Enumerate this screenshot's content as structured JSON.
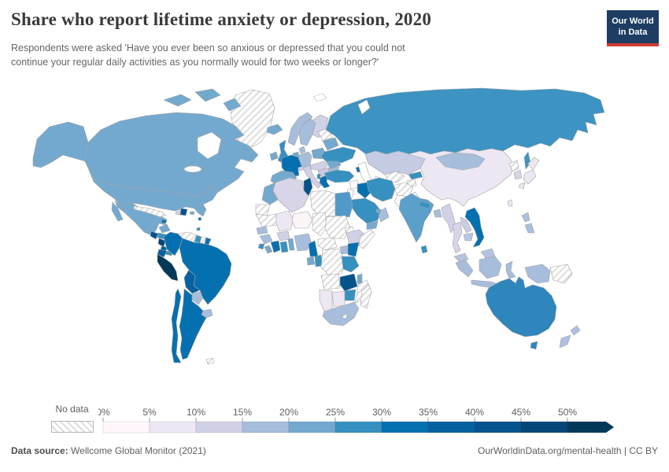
{
  "header": {
    "title": "Share who report lifetime anxiety or depression, 2020",
    "subtitle": "Respondents were asked 'Have you ever been so anxious or depressed that you could not continue your regular daily activities as you normally would for two weeks or longer?'",
    "logo": {
      "line1": "Our World",
      "line2": "in Data",
      "bg": "#1d3d63",
      "accent": "#d13b33"
    }
  },
  "legend": {
    "no_data_label": "No data",
    "ticks": [
      "0%",
      "5%",
      "10%",
      "15%",
      "20%",
      "25%",
      "30%",
      "35%",
      "40%",
      "45%",
      "50%"
    ],
    "bins": [
      {
        "label": "0-5%",
        "color": "#fff7fb"
      },
      {
        "label": "5-10%",
        "color": "#ece7f2"
      },
      {
        "label": "10-15%",
        "color": "#d0d1e6"
      },
      {
        "label": "15-20%",
        "color": "#a6bddb"
      },
      {
        "label": "20-25%",
        "color": "#74a9cf"
      },
      {
        "label": "25-30%",
        "color": "#3690c0"
      },
      {
        "label": "30-35%",
        "color": "#0570b0"
      },
      {
        "label": "35-40%",
        "color": "#05609f"
      },
      {
        "label": "40-45%",
        "color": "#04538c"
      },
      {
        "label": "45-50%",
        "color": "#034678"
      },
      {
        "label": ">50%",
        "color": "#023858"
      }
    ]
  },
  "footer": {
    "source_label": "Data source:",
    "source_value": "Wellcome Global Monitor (2021)",
    "right": "OurWorldinData.org/mental-health | CC BY"
  },
  "map": {
    "ocean": "#ffffff",
    "border_color": "#a3a3a3",
    "no_data_border": "#bdbdbd",
    "no_data_stripe": "#dcdcdc",
    "regions": {
      "greenland": {
        "no_data": true
      },
      "canada": {
        "color": "#74a9cf"
      },
      "usa": {
        "color": "#74a9cf"
      },
      "mexico": {
        "color": "#74a9cf"
      },
      "guatemala": {
        "color": "#04538c"
      },
      "honduras": {
        "color": "#3690c0"
      },
      "nicaragua": {
        "color": "#034678"
      },
      "costa-rica": {
        "color": "#05609f"
      },
      "panama": {
        "color": "#3690c0"
      },
      "cuba": {
        "no_data": true
      },
      "haiti": {
        "color": "#d0d1e6"
      },
      "dominican-republic": {
        "color": "#04538c"
      },
      "jamaica": {
        "color": "#0570b0"
      },
      "puerto-rico": {
        "color": "#74a9cf"
      },
      "lesser-antilles": {
        "color": "#0570b0"
      },
      "trinidad": {
        "color": "#3690c0"
      },
      "colombia": {
        "color": "#0570b0"
      },
      "venezuela": {
        "no_data": true
      },
      "guyana": {
        "color": "#3690c0"
      },
      "suriname": {
        "no_data": true
      },
      "french-guiana": {
        "color": "#0570b0"
      },
      "ecuador": {
        "color": "#05609f"
      },
      "peru": {
        "color": "#023858"
      },
      "brazil": {
        "color": "#0570b0"
      },
      "bolivia": {
        "color": "#05609f"
      },
      "paraguay": {
        "color": "#a6bddb"
      },
      "uruguay": {
        "color": "#a6bddb"
      },
      "argentina": {
        "color": "#0570b0"
      },
      "chile": {
        "color": "#0570b0"
      },
      "falkland-islands": {
        "no_data": true
      },
      "iceland": {
        "color": "#74a9cf"
      },
      "ireland": {
        "color": "#74a9cf"
      },
      "uk": {
        "color": "#3690c0"
      },
      "norway": {
        "color": "#a6bddb"
      },
      "sweden": {
        "color": "#a6bddb"
      },
      "finland": {
        "color": "#d0d1e6"
      },
      "denmark": {
        "color": "#a6bddb"
      },
      "benelux": {
        "color": "#74a9cf"
      },
      "germany": {
        "color": "#a6bddb"
      },
      "france": {
        "color": "#0570b0"
      },
      "spain": {
        "color": "#74a9cf"
      },
      "italy": {
        "color": "#d0d1e6"
      },
      "switzerland": {
        "color": "#d0d1e6"
      },
      "poland": {
        "color": "#74a9cf"
      },
      "czech-austria": {
        "color": "#d0d1e6"
      },
      "balkans": {
        "color": "#c9c9e0"
      },
      "albania": {
        "color": "#3690c0"
      },
      "greece": {
        "color": "#0570b0"
      },
      "romania": {
        "color": "#74a9cf"
      },
      "bulgaria": {
        "color": "#a6bddb"
      },
      "ukraine": {
        "color": "#3690c0"
      },
      "belarus": {
        "color": "#74a9cf"
      },
      "baltics": {
        "no_data": true
      },
      "russia": {
        "color": "#3d93c2"
      },
      "turkey": {
        "color": "#3690c0"
      },
      "caucasus": {
        "color": "#0570b0"
      },
      "syria": {
        "color": "#fff7fb"
      },
      "israel-jordan": {
        "color": "#fff7fb"
      },
      "iraq": {
        "color": "#0570b0"
      },
      "iran": {
        "color": "#3690c0"
      },
      "saudi-arabia": {
        "color": "#3690c0"
      },
      "yemen": {
        "color": "#74a9cf"
      },
      "oman": {
        "color": "#a6bddb"
      },
      "uae": {
        "color": "#74a9cf"
      },
      "egypt": {
        "color": "#4f9aca"
      },
      "libya": {
        "no_data": true
      },
      "tunisia": {
        "color": "#06518a"
      },
      "algeria": {
        "color": "#d8d5e8"
      },
      "morocco": {
        "color": "#74a9cf"
      },
      "western-sahara": {
        "no_data": true
      },
      "mauritania": {
        "no_data": true
      },
      "mali": {
        "color": "#ece7f2"
      },
      "niger": {
        "color": "#fbf4f9"
      },
      "chad": {
        "no_data": true
      },
      "sudan": {
        "no_data": true
      },
      "eritrea": {
        "no_data": true
      },
      "ethiopia": {
        "color": "#d0d1e6"
      },
      "somalia": {
        "no_data": true
      },
      "senegal": {
        "color": "#a6bddb"
      },
      "guinea": {
        "color": "#a6bddb"
      },
      "sierra-leone": {
        "color": "#3690c0"
      },
      "liberia": {
        "color": "#74a9cf"
      },
      "ivory-coast": {
        "color": "#0570b0"
      },
      "ghana": {
        "color": "#3690c0"
      },
      "burkina-faso": {
        "color": "#d0d1e6"
      },
      "togo-benin": {
        "color": "#74a9cf"
      },
      "nigeria": {
        "color": "#a6bddb"
      },
      "cameroon": {
        "color": "#0570b0"
      },
      "central-african-republic": {
        "no_data": true
      },
      "gabon": {
        "color": "#74a9cf"
      },
      "congo": {
        "color": "#3690c0"
      },
      "drc": {
        "no_data": true
      },
      "uganda": {
        "color": "#a6bddb"
      },
      "kenya": {
        "color": "#0570b0"
      },
      "tanzania": {
        "color": "#3690c0"
      },
      "angola": {
        "no_data": true
      },
      "zambia": {
        "color": "#04538c"
      },
      "malawi": {
        "color": "#74a9cf"
      },
      "mozambique": {
        "no_data": true
      },
      "zimbabwe": {
        "color": "#3690c0"
      },
      "botswana": {
        "color": "#ece7f2"
      },
      "namibia": {
        "color": "#ece7f2"
      },
      "south-africa": {
        "color": "#a6bddb"
      },
      "lesotho": {
        "color": "#fff7fb"
      },
      "madagascar": {
        "no_data": true
      },
      "kazakhstan": {
        "color": "#c4cbe3"
      },
      "uzbekistan": {
        "no_data": true
      },
      "turkmenistan": {
        "no_data": true
      },
      "kyrgyzstan": {
        "color": "#3690c0"
      },
      "tajikistan": {
        "no_data": true
      },
      "afghanistan": {
        "no_data": true
      },
      "pakistan": {
        "color": "#fff7fb"
      },
      "india": {
        "color": "#5b9fcb"
      },
      "nepal": {
        "color": "#3690c0"
      },
      "bangladesh": {
        "color": "#a6bddb"
      },
      "sri-lanka": {
        "color": "#3690c0"
      },
      "myanmar": {
        "color": "#d0d1e6"
      },
      "thailand": {
        "color": "#d8d3e8"
      },
      "laos": {
        "color": "#c9cde4"
      },
      "cambodia": {
        "color": "#b9c6e0"
      },
      "vietnam": {
        "color": "#0570b0"
      },
      "china": {
        "color": "#ece7f2"
      },
      "mongolia": {
        "color": "#a6bddb"
      },
      "north-korea": {
        "no_data": true
      },
      "south-korea": {
        "color": "#d8d5e8"
      },
      "japan": {
        "color": "#ece7f2"
      },
      "taiwan": {
        "color": "#ece7f2"
      },
      "philippines": {
        "color": "#a9c0de"
      },
      "malaysia": {
        "color": "#b3c3e0"
      },
      "indonesia": {
        "color": "#a6bddb"
      },
      "papua-new-guinea": {
        "no_data": true
      },
      "australia": {
        "color": "#2e86bc"
      },
      "new-zealand": {
        "color": "#aebfe0"
      }
    }
  },
  "chart_data": {
    "type": "choropleth",
    "title": "Share who report lifetime anxiety or depression, 2020",
    "unit": "% of respondents",
    "year": 2020,
    "legend_bins": [
      "0-5%",
      "5-10%",
      "10-15%",
      "15-20%",
      "20-25%",
      "25-30%",
      "30-35%",
      "35-40%",
      "40-45%",
      "45-50%",
      ">50%"
    ],
    "countries": {
      "Canada": "20-25%",
      "United States": "20-25%",
      "Mexico": "20-25%",
      "Greenland": "No data",
      "Guatemala": "40-45%",
      "Honduras": "25-30%",
      "Nicaragua": "45-50%",
      "Costa Rica": "35-40%",
      "Panama": "25-30%",
      "Cuba": "No data",
      "Haiti": "10-15%",
      "Dominican Republic": "40-45%",
      "Jamaica": "30-35%",
      "Colombia": "30-35%",
      "Venezuela": "No data",
      "Guyana": "25-30%",
      "Suriname": "No data",
      "Ecuador": "35-40%",
      "Peru": ">50%",
      "Brazil": "30-35%",
      "Bolivia": "35-40%",
      "Paraguay": "15-20%",
      "Uruguay": "15-20%",
      "Argentina": "30-35%",
      "Chile": "30-35%",
      "Iceland": "20-25%",
      "Ireland": "20-25%",
      "United Kingdom": "25-30%",
      "Norway": "15-20%",
      "Sweden": "15-20%",
      "Finland": "10-15%",
      "Denmark": "15-20%",
      "Germany": "15-20%",
      "France": "30-35%",
      "Spain": "20-25%",
      "Portugal": "20-25%",
      "Italy": "10-15%",
      "Switzerland": "10-15%",
      "Poland": "20-25%",
      "Austria": "10-15%",
      "Czechia": "10-15%",
      "Hungary": "10-15%",
      "Serbia": "10-15%",
      "Albania": "25-30%",
      "Greece": "30-35%",
      "Romania": "20-25%",
      "Bulgaria": "15-20%",
      "Ukraine": "25-30%",
      "Belarus": "20-25%",
      "Estonia": "No data",
      "Latvia": "No data",
      "Lithuania": "No data",
      "Russia": "25-30%",
      "Turkey": "25-30%",
      "Georgia": "30-35%",
      "Syria": "0-5%",
      "Jordan": "0-5%",
      "Iraq": "30-35%",
      "Iran": "25-30%",
      "Saudi Arabia": "25-30%",
      "Yemen": "20-25%",
      "Oman": "15-20%",
      "United Arab Emirates": "20-25%",
      "Egypt": "25-30%",
      "Libya": "No data",
      "Tunisia": "45-50%",
      "Algeria": "10-15%",
      "Morocco": "20-25%",
      "Western Sahara": "No data",
      "Mauritania": "No data",
      "Mali": "5-10%",
      "Niger": "0-5%",
      "Chad": "No data",
      "Sudan": "No data",
      "Eritrea": "No data",
      "Ethiopia": "10-15%",
      "Somalia": "No data",
      "Senegal": "15-20%",
      "Guinea": "15-20%",
      "Sierra Leone": "25-30%",
      "Liberia": "20-25%",
      "Cote d'Ivoire": "30-35%",
      "Ghana": "25-30%",
      "Burkina Faso": "10-15%",
      "Benin": "20-25%",
      "Togo": "20-25%",
      "Nigeria": "15-20%",
      "Cameroon": "30-35%",
      "Central African Republic": "No data",
      "Gabon": "20-25%",
      "Congo": "25-30%",
      "DR Congo": "No data",
      "Uganda": "15-20%",
      "Kenya": "30-35%",
      "Tanzania": "25-30%",
      "Angola": "No data",
      "Zambia": "40-45%",
      "Malawi": "20-25%",
      "Mozambique": "No data",
      "Zimbabwe": "25-30%",
      "Botswana": "5-10%",
      "Namibia": "5-10%",
      "South Africa": "15-20%",
      "Lesotho": "0-5%",
      "Madagascar": "No data",
      "Kazakhstan": "10-15%",
      "Uzbekistan": "No data",
      "Turkmenistan": "No data",
      "Kyrgyzstan": "25-30%",
      "Tajikistan": "No data",
      "Afghanistan": "No data",
      "Pakistan": "0-5%",
      "India": "20-25%",
      "Nepal": "25-30%",
      "Bangladesh": "15-20%",
      "Sri Lanka": "25-30%",
      "Myanmar": "10-15%",
      "Thailand": "10-15%",
      "Laos": "10-15%",
      "Cambodia": "15-20%",
      "Vietnam": "30-35%",
      "China": "5-10%",
      "Mongolia": "15-20%",
      "North Korea": "No data",
      "South Korea": "10-15%",
      "Japan": "5-10%",
      "Taiwan": "5-10%",
      "Philippines": "15-20%",
      "Malaysia": "15-20%",
      "Indonesia": "15-20%",
      "Papua New Guinea": "No data",
      "Australia": "25-30%",
      "New Zealand": "15-20%"
    }
  }
}
